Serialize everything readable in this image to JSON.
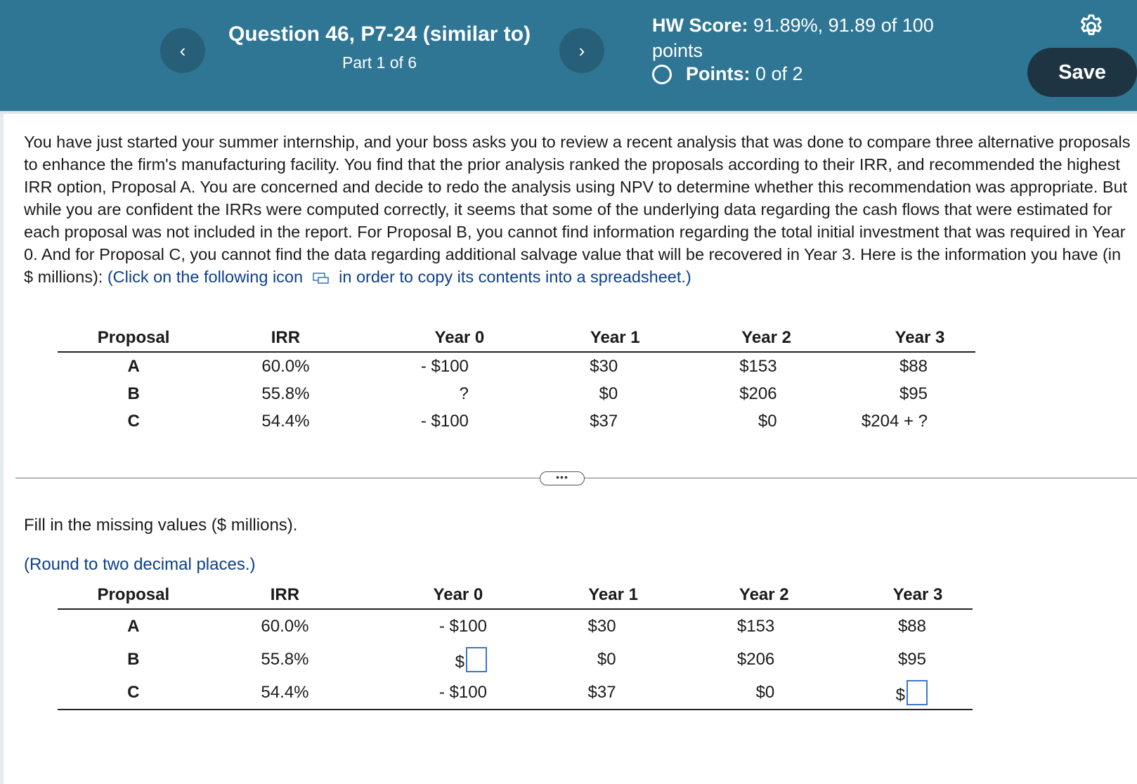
{
  "header": {
    "prev_label": "‹",
    "next_label": "›",
    "question_title": "Question 46, P7-24 (similar to)",
    "part": "Part 1 of 6",
    "hw_score_label": "HW Score:",
    "hw_score_value": "91.89%, 91.89 of 100",
    "hw_score_unit": "points",
    "points_label": "Points:",
    "points_value": "0 of 2",
    "save_label": "Save",
    "settings_icon": "gear-icon",
    "colors": {
      "header_bg": "#2f7594",
      "save_bg": "#1f3442",
      "nav_bg": "#275f78"
    }
  },
  "problem": {
    "text": "You have just started your summer internship, and your boss asks you to review a recent analysis that was done to compare three alternative proposals to enhance the firm's manufacturing facility. You find that the prior analysis ranked the proposals according to their IRR, and recommended the highest IRR option, Proposal A. You are concerned and decide to redo the analysis using NPV to determine whether this recommendation was appropriate. But while you are confident the IRRs were computed correctly, it seems that some of the underlying data regarding the cash flows that were estimated for each proposal was not included in the report. For Proposal B, you cannot find information regarding the total initial investment that was required in Year 0. And for Proposal C, you cannot find the data regarding additional salvage value that will be recovered in Year 3. Here is the information you have (in $ millions):",
    "link_before_icon": "(Click on the following icon",
    "link_after_icon": "in order to copy its contents into a spreadsheet.)"
  },
  "table_given": {
    "headers": [
      "Proposal",
      "IRR",
      "Year 0",
      "Year 1",
      "Year 2",
      "Year 3"
    ],
    "rows": [
      [
        "A",
        "60.0%",
        "- $100",
        "$30",
        "$153",
        "$88"
      ],
      [
        "B",
        "55.8%",
        "?",
        "$0",
        "$206",
        "$95"
      ],
      [
        "C",
        "54.4%",
        "- $100",
        "$37",
        "$0",
        "$204 + ?"
      ]
    ]
  },
  "more_button_label": "•••",
  "instructions": {
    "fill": "Fill in the missing values ($ millions).",
    "round": "(Round to two decimal places.)"
  },
  "table_answer": {
    "headers": [
      "Proposal",
      "IRR",
      "Year 0",
      "Year 1",
      "Year 2",
      "Year 3"
    ],
    "rows": [
      {
        "prop": "A",
        "irr": "60.0%",
        "y0": "- $100",
        "y1": "$30",
        "y2": "$153",
        "y3": "$88"
      },
      {
        "prop": "B",
        "irr": "55.8%",
        "y0_prefix": "$",
        "y0_value": "",
        "y1": "$0",
        "y2": "$206",
        "y3": "$95"
      },
      {
        "prop": "C",
        "irr": "54.4%",
        "y0": "- $100",
        "y1": "$37",
        "y2": "$0",
        "y3_prefix": "$",
        "y3_value": ""
      }
    ]
  }
}
